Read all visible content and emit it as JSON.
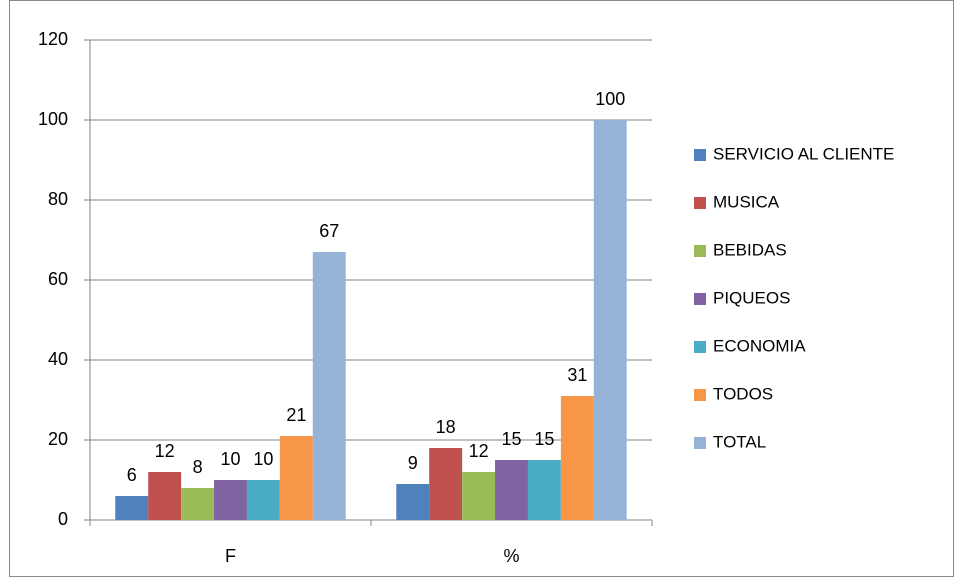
{
  "chart_data": {
    "type": "bar",
    "categories": [
      "F",
      "%"
    ],
    "series": [
      {
        "name": "SERVICIO AL CLIENTE",
        "color": "#4f81bd",
        "values": [
          6,
          9
        ]
      },
      {
        "name": "MUSICA",
        "color": "#c0504d",
        "values": [
          12,
          18
        ]
      },
      {
        "name": "BEBIDAS",
        "color": "#9bbb59",
        "values": [
          8,
          12
        ]
      },
      {
        "name": "PIQUEOS",
        "color": "#8064a2",
        "values": [
          10,
          15
        ]
      },
      {
        "name": "ECONOMIA",
        "color": "#4bacc6",
        "values": [
          10,
          15
        ]
      },
      {
        "name": "TODOS",
        "color": "#f79646",
        "values": [
          21,
          31
        ]
      },
      {
        "name": "TOTAL",
        "color": "#95b3d7",
        "values": [
          67,
          100
        ]
      }
    ],
    "ylim": [
      0,
      120
    ],
    "yticks": [
      0,
      20,
      40,
      60,
      80,
      100,
      120
    ],
    "grid": true,
    "legend": "right",
    "data_labels": true
  }
}
